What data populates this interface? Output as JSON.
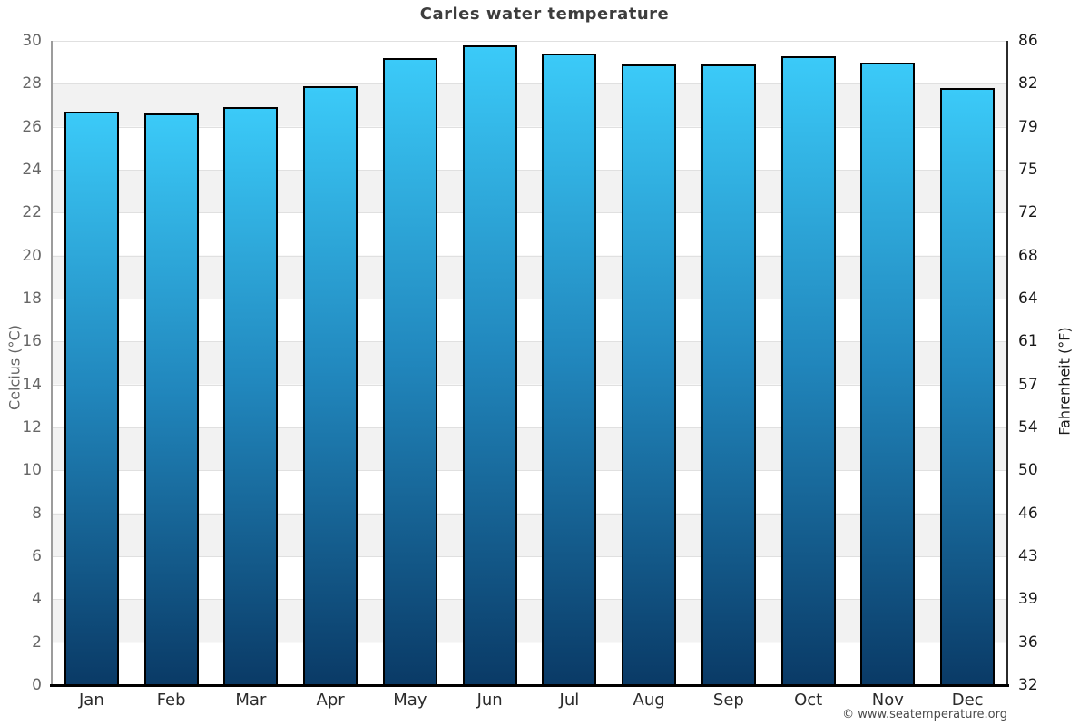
{
  "page": {
    "footer_credit": "© www.seatemperature.org"
  },
  "chart_data": {
    "type": "bar",
    "title": "Carles water temperature",
    "categories": [
      "Jan",
      "Feb",
      "Mar",
      "Apr",
      "May",
      "Jun",
      "Jul",
      "Aug",
      "Sep",
      "Oct",
      "Nov",
      "Dec"
    ],
    "values": [
      26.7,
      26.6,
      26.9,
      27.9,
      29.2,
      29.8,
      29.4,
      28.9,
      28.9,
      29.3,
      29.0,
      27.8
    ],
    "unit": "°C",
    "ylabel_left": "Celcius (°C)",
    "ylabel_right": "Fahrenheit (°F)",
    "ylim": [
      0,
      30
    ],
    "ytick_step_celsius": 2,
    "yticks_celsius": [
      30,
      28,
      26,
      24,
      22,
      20,
      18,
      16,
      14,
      12,
      10,
      8,
      6,
      4,
      2,
      0
    ],
    "yticks_fahrenheit": [
      86,
      82,
      79,
      75,
      72,
      68,
      64,
      61,
      57,
      54,
      50,
      46,
      43,
      39,
      36,
      32
    ],
    "legend": "none",
    "grid": "horizontal gridline every 2°C with alternating white/light-gray bands",
    "colors": {
      "bar_gradient_top": "#3bcaf8",
      "bar_gradient_mid": "#2187bd",
      "bar_gradient_bottom": "#0a3a66",
      "bar_border": "#000000",
      "band_stripe": "#f2f2f2",
      "gridline": "#e0e0e0",
      "title_text": "#3d3d3d",
      "left_tick_text": "#666666",
      "right_tick_text": "#1a1a1a",
      "month_text": "#2b2b2b",
      "baseline": "#000000"
    }
  }
}
